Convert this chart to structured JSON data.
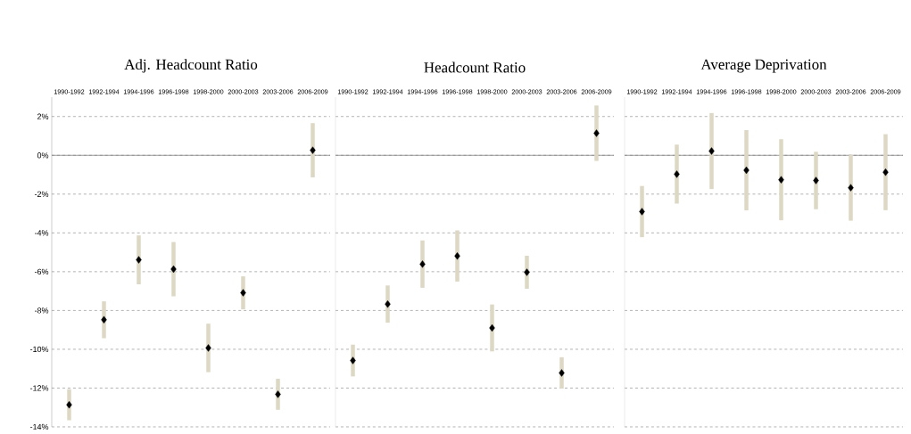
{
  "chart_data": [
    {
      "type": "scatter",
      "title": "Adj. Headcount Ratio",
      "categories": [
        "1990-1992",
        "1992-1994",
        "1994-1996",
        "1996-1998",
        "1998-2000",
        "2000-2003",
        "2003-2006",
        "2006-2009"
      ],
      "series": [
        {
          "color": "#000000",
          "values": [
            -12.86,
            -8.48,
            -5.39,
            -5.87,
            -9.93,
            -7.09,
            -12.32,
            0.26
          ],
          "errors": [
            0.8,
            0.95,
            1.26,
            1.4,
            1.25,
            0.85,
            0.8,
            1.4
          ]
        }
      ],
      "ylim": [
        -14,
        3
      ],
      "yticks": [
        {
          "value": -14,
          "label": "-14%"
        },
        {
          "value": -12,
          "label": "-12%"
        },
        {
          "value": -10,
          "label": "-10%"
        },
        {
          "value": -8,
          "label": "-8%"
        },
        {
          "value": -6,
          "label": "-6%"
        },
        {
          "value": -4,
          "label": "-4%"
        },
        {
          "value": -2,
          "label": "-2%"
        },
        {
          "value": 0,
          "label": "0%"
        },
        {
          "value": 2,
          "label": "2%"
        }
      ],
      "grid": "y",
      "marker": "diamond"
    },
    {
      "type": "scatter",
      "title": "Headcount Ratio",
      "categories": [
        "1990-1992",
        "1992-1994",
        "1994-1996",
        "1996-1998",
        "1998-2000",
        "2000-2003",
        "2003-2006",
        "2006-2009"
      ],
      "series": [
        {
          "color": "#000000",
          "values": [
            -10.58,
            -7.67,
            -5.61,
            -5.19,
            -8.9,
            -6.03,
            -11.22,
            1.14
          ],
          "errors": [
            0.82,
            0.96,
            1.22,
            1.32,
            1.21,
            0.85,
            0.81,
            1.43
          ]
        }
      ],
      "ylim": [
        -14,
        3
      ],
      "yticks": [
        {
          "value": -14,
          "label": null
        },
        {
          "value": -12,
          "label": null
        },
        {
          "value": -10,
          "label": null
        },
        {
          "value": -8,
          "label": null
        },
        {
          "value": -6,
          "label": null
        },
        {
          "value": -4,
          "label": null
        },
        {
          "value": -2,
          "label": null
        },
        {
          "value": 0,
          "label": null
        },
        {
          "value": 2,
          "label": null
        }
      ],
      "tick_labels": "x",
      "grid": "y",
      "marker": "diamond"
    },
    {
      "type": "scatter",
      "title": "Average Deprivation",
      "categories": [
        "1990-1992",
        "1992-1994",
        "1994-1996",
        "1996-1998",
        "1998-2000",
        "2000-2003",
        "2003-2006",
        "2006-2009"
      ],
      "series": [
        {
          "color": "#000000",
          "values": [
            -2.9,
            -0.97,
            0.22,
            -0.77,
            -1.26,
            -1.3,
            -1.67,
            -0.87
          ],
          "errors": [
            1.32,
            1.52,
            1.96,
            2.07,
            2.09,
            1.48,
            1.7,
            1.96
          ]
        }
      ],
      "ylim": [
        -14,
        3
      ],
      "yticks": [
        {
          "value": -14,
          "label": null
        },
        {
          "value": -12,
          "label": null
        },
        {
          "value": -10,
          "label": null
        },
        {
          "value": -8,
          "label": null
        },
        {
          "value": -6,
          "label": null
        },
        {
          "value": -4,
          "label": null
        },
        {
          "value": -2,
          "label": null
        },
        {
          "value": 0,
          "label": null
        },
        {
          "value": 2,
          "label": null
        }
      ],
      "tick_labels": "x",
      "grid": "y",
      "marker": "diamond"
    }
  ]
}
